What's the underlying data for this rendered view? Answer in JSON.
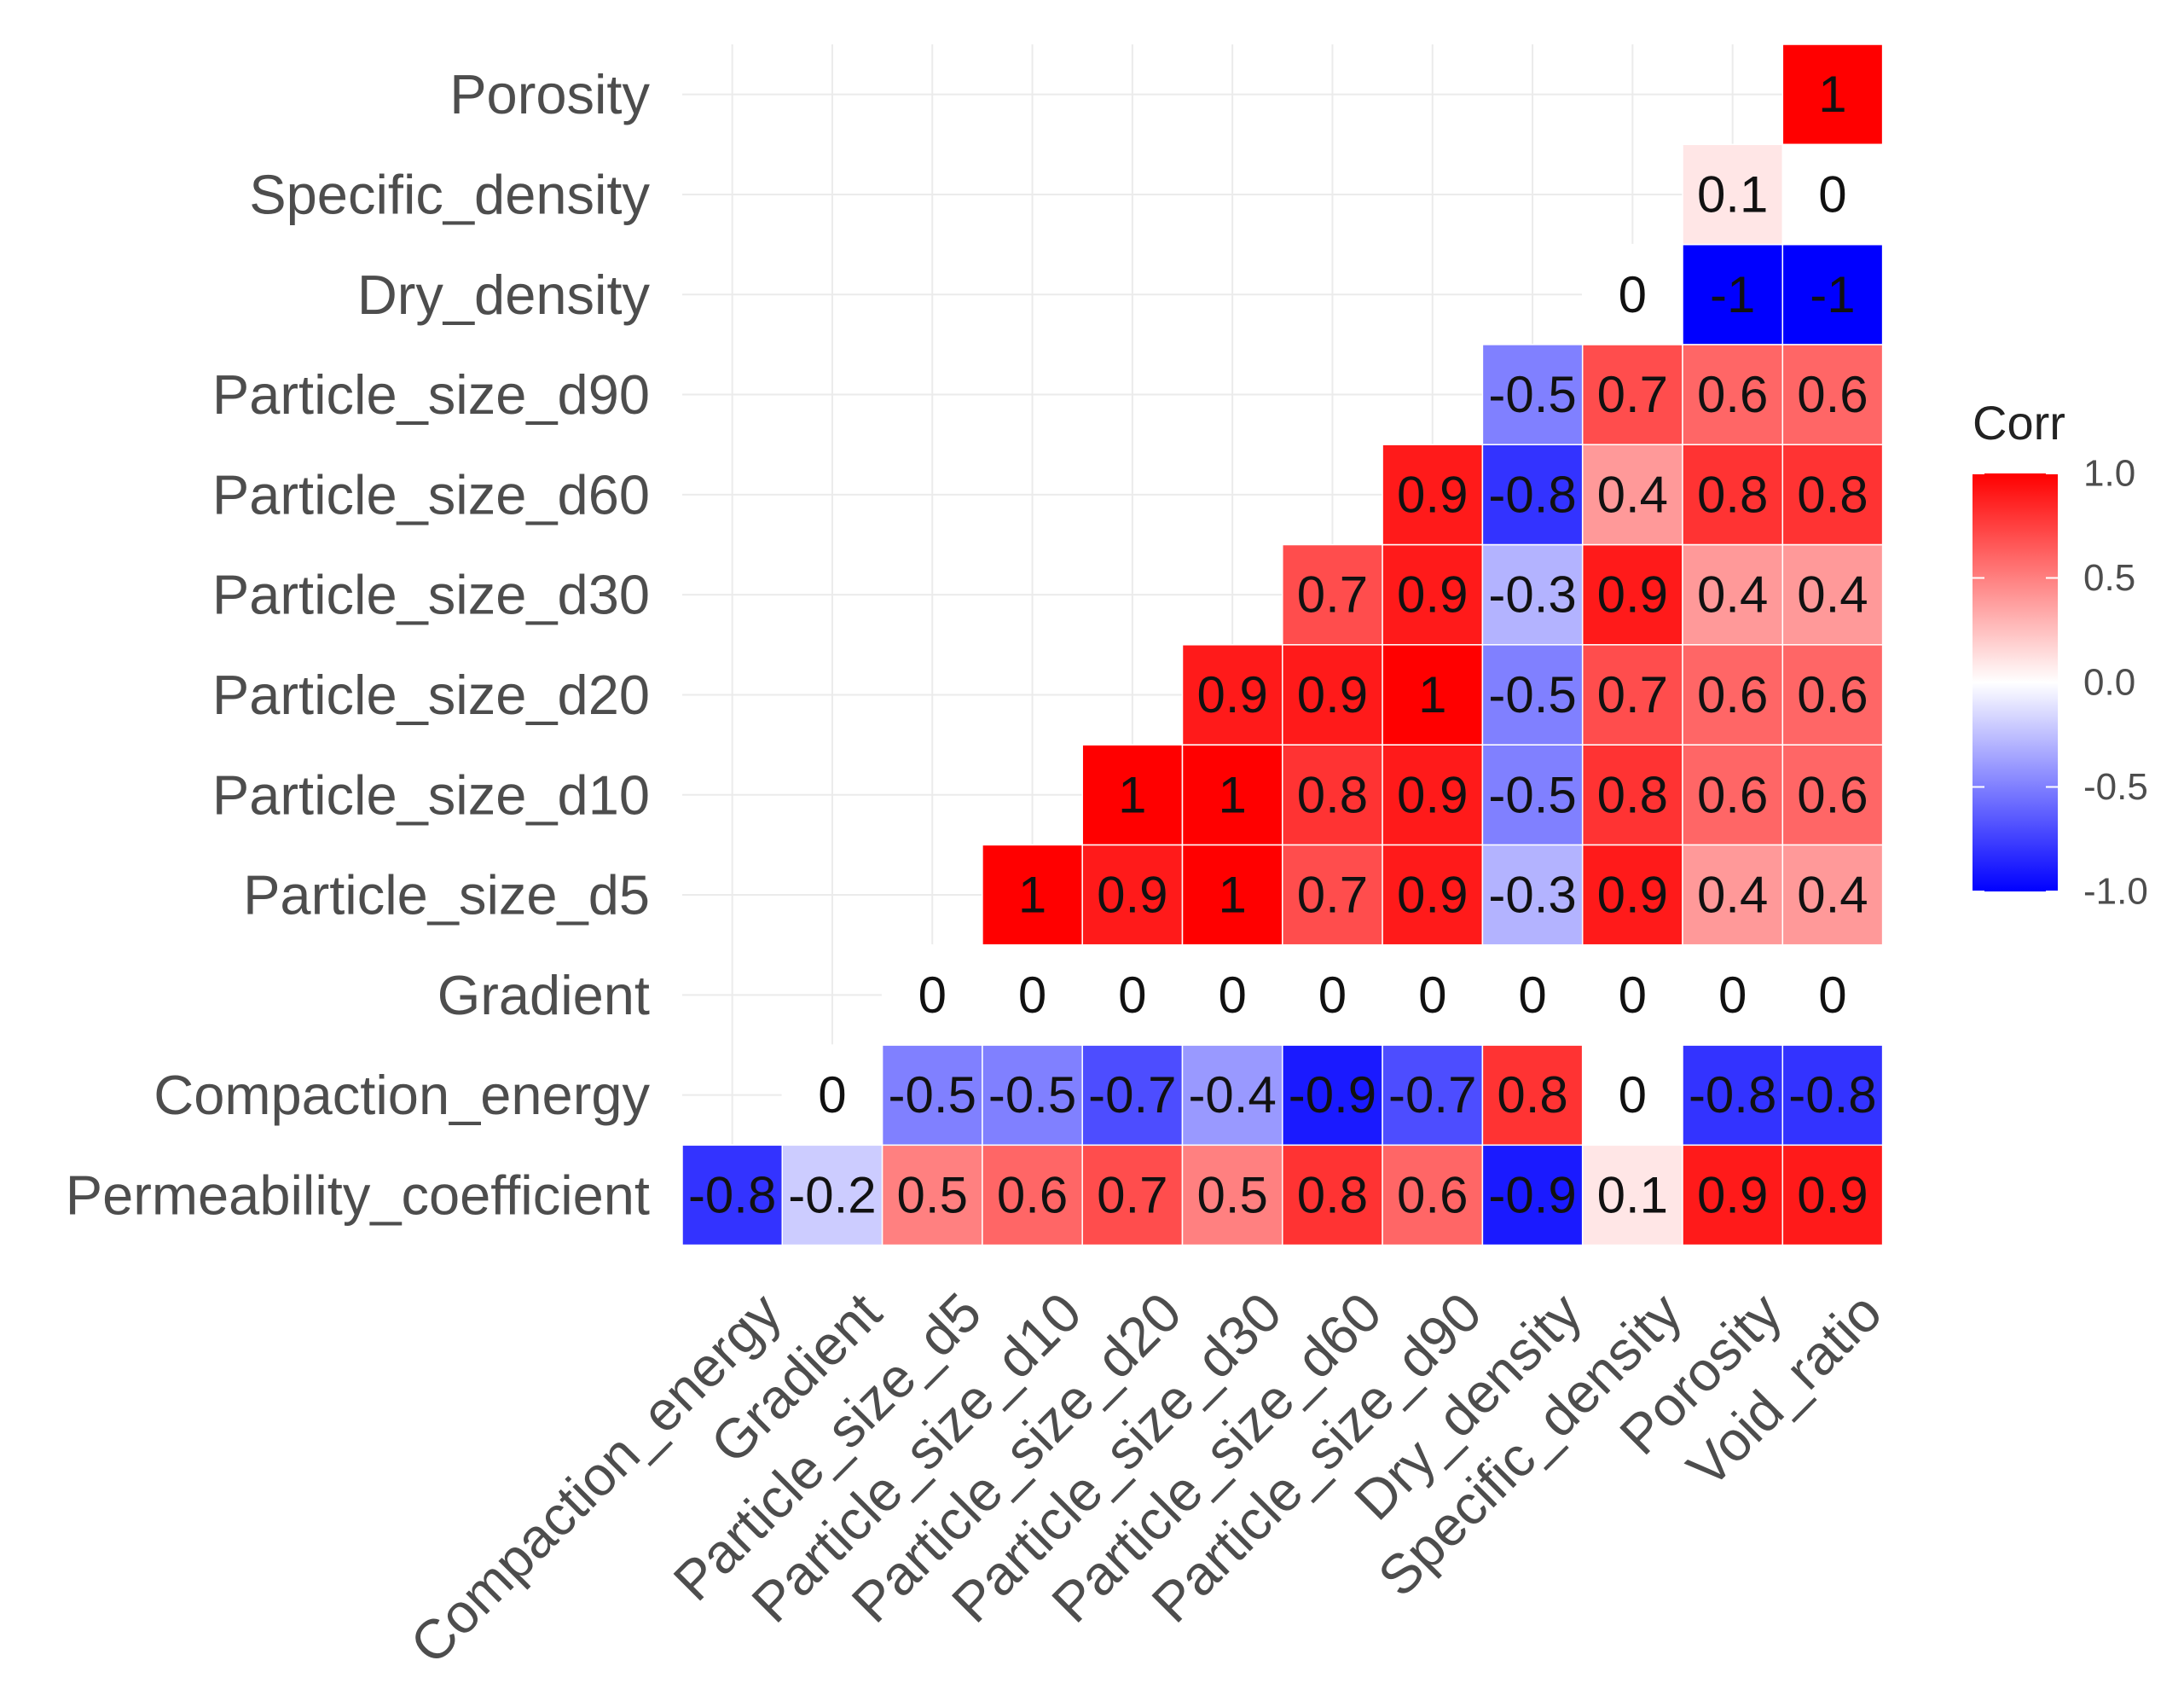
{
  "chart_data": {
    "type": "heatmap",
    "title": "",
    "xlabel": "",
    "ylabel": "",
    "x_categories": [
      "Compaction_energy",
      "Gradient",
      "Particle_size_d5",
      "Particle_size_d10",
      "Particle_size_d20",
      "Particle_size_d30",
      "Particle_size_d60",
      "Particle_size_d90",
      "Dry_density",
      "Specific_density",
      "Porosity",
      "Void_ratio"
    ],
    "y_categories": [
      "Permeability_coefficient",
      "Compaction_energy",
      "Gradient",
      "Particle_size_d5",
      "Particle_size_d10",
      "Particle_size_d20",
      "Particle_size_d30",
      "Particle_size_d60",
      "Particle_size_d90",
      "Dry_density",
      "Specific_density",
      "Porosity"
    ],
    "cells": [
      {
        "x": "Compaction_energy",
        "y": "Permeability_coefficient",
        "value": -0.8,
        "label": "-0.8"
      },
      {
        "x": "Gradient",
        "y": "Permeability_coefficient",
        "value": -0.2,
        "label": "-0.2"
      },
      {
        "x": "Particle_size_d5",
        "y": "Permeability_coefficient",
        "value": 0.5,
        "label": "0.5"
      },
      {
        "x": "Particle_size_d10",
        "y": "Permeability_coefficient",
        "value": 0.6,
        "label": "0.6"
      },
      {
        "x": "Particle_size_d20",
        "y": "Permeability_coefficient",
        "value": 0.7,
        "label": "0.7"
      },
      {
        "x": "Particle_size_d30",
        "y": "Permeability_coefficient",
        "value": 0.5,
        "label": "0.5"
      },
      {
        "x": "Particle_size_d60",
        "y": "Permeability_coefficient",
        "value": 0.8,
        "label": "0.8"
      },
      {
        "x": "Particle_size_d90",
        "y": "Permeability_coefficient",
        "value": 0.6,
        "label": "0.6"
      },
      {
        "x": "Dry_density",
        "y": "Permeability_coefficient",
        "value": -0.9,
        "label": "-0.9"
      },
      {
        "x": "Specific_density",
        "y": "Permeability_coefficient",
        "value": 0.1,
        "label": "0.1"
      },
      {
        "x": "Porosity",
        "y": "Permeability_coefficient",
        "value": 0.9,
        "label": "0.9"
      },
      {
        "x": "Void_ratio",
        "y": "Permeability_coefficient",
        "value": 0.9,
        "label": "0.9"
      },
      {
        "x": "Gradient",
        "y": "Compaction_energy",
        "value": 0,
        "label": "0"
      },
      {
        "x": "Particle_size_d5",
        "y": "Compaction_energy",
        "value": -0.5,
        "label": "-0.5"
      },
      {
        "x": "Particle_size_d10",
        "y": "Compaction_energy",
        "value": -0.5,
        "label": "-0.5"
      },
      {
        "x": "Particle_size_d20",
        "y": "Compaction_energy",
        "value": -0.7,
        "label": "-0.7"
      },
      {
        "x": "Particle_size_d30",
        "y": "Compaction_energy",
        "value": -0.4,
        "label": "-0.4"
      },
      {
        "x": "Particle_size_d60",
        "y": "Compaction_energy",
        "value": -0.9,
        "label": "-0.9"
      },
      {
        "x": "Particle_size_d90",
        "y": "Compaction_energy",
        "value": -0.7,
        "label": "-0.7"
      },
      {
        "x": "Dry_density",
        "y": "Compaction_energy",
        "value": 0.8,
        "label": "0.8"
      },
      {
        "x": "Specific_density",
        "y": "Compaction_energy",
        "value": 0,
        "label": "0"
      },
      {
        "x": "Porosity",
        "y": "Compaction_energy",
        "value": -0.8,
        "label": "-0.8"
      },
      {
        "x": "Void_ratio",
        "y": "Compaction_energy",
        "value": -0.8,
        "label": "-0.8"
      },
      {
        "x": "Particle_size_d5",
        "y": "Gradient",
        "value": 0,
        "label": "0"
      },
      {
        "x": "Particle_size_d10",
        "y": "Gradient",
        "value": 0,
        "label": "0"
      },
      {
        "x": "Particle_size_d20",
        "y": "Gradient",
        "value": 0,
        "label": "0"
      },
      {
        "x": "Particle_size_d30",
        "y": "Gradient",
        "value": 0,
        "label": "0"
      },
      {
        "x": "Particle_size_d60",
        "y": "Gradient",
        "value": 0,
        "label": "0"
      },
      {
        "x": "Particle_size_d90",
        "y": "Gradient",
        "value": 0,
        "label": "0"
      },
      {
        "x": "Dry_density",
        "y": "Gradient",
        "value": 0,
        "label": "0"
      },
      {
        "x": "Specific_density",
        "y": "Gradient",
        "value": 0,
        "label": "0"
      },
      {
        "x": "Porosity",
        "y": "Gradient",
        "value": 0,
        "label": "0"
      },
      {
        "x": "Void_ratio",
        "y": "Gradient",
        "value": 0,
        "label": "0"
      },
      {
        "x": "Particle_size_d10",
        "y": "Particle_size_d5",
        "value": 1,
        "label": "1"
      },
      {
        "x": "Particle_size_d20",
        "y": "Particle_size_d5",
        "value": 0.9,
        "label": "0.9"
      },
      {
        "x": "Particle_size_d30",
        "y": "Particle_size_d5",
        "value": 1,
        "label": "1"
      },
      {
        "x": "Particle_size_d60",
        "y": "Particle_size_d5",
        "value": 0.7,
        "label": "0.7"
      },
      {
        "x": "Particle_size_d90",
        "y": "Particle_size_d5",
        "value": 0.9,
        "label": "0.9"
      },
      {
        "x": "Dry_density",
        "y": "Particle_size_d5",
        "value": -0.3,
        "label": "-0.3"
      },
      {
        "x": "Specific_density",
        "y": "Particle_size_d5",
        "value": 0.9,
        "label": "0.9"
      },
      {
        "x": "Porosity",
        "y": "Particle_size_d5",
        "value": 0.4,
        "label": "0.4"
      },
      {
        "x": "Void_ratio",
        "y": "Particle_size_d5",
        "value": 0.4,
        "label": "0.4"
      },
      {
        "x": "Particle_size_d20",
        "y": "Particle_size_d10",
        "value": 1,
        "label": "1"
      },
      {
        "x": "Particle_size_d30",
        "y": "Particle_size_d10",
        "value": 1,
        "label": "1"
      },
      {
        "x": "Particle_size_d60",
        "y": "Particle_size_d10",
        "value": 0.8,
        "label": "0.8"
      },
      {
        "x": "Particle_size_d90",
        "y": "Particle_size_d10",
        "value": 0.9,
        "label": "0.9"
      },
      {
        "x": "Dry_density",
        "y": "Particle_size_d10",
        "value": -0.5,
        "label": "-0.5"
      },
      {
        "x": "Specific_density",
        "y": "Particle_size_d10",
        "value": 0.8,
        "label": "0.8"
      },
      {
        "x": "Porosity",
        "y": "Particle_size_d10",
        "value": 0.6,
        "label": "0.6"
      },
      {
        "x": "Void_ratio",
        "y": "Particle_size_d10",
        "value": 0.6,
        "label": "0.6"
      },
      {
        "x": "Particle_size_d30",
        "y": "Particle_size_d20",
        "value": 0.9,
        "label": "0.9"
      },
      {
        "x": "Particle_size_d60",
        "y": "Particle_size_d20",
        "value": 0.9,
        "label": "0.9"
      },
      {
        "x": "Particle_size_d90",
        "y": "Particle_size_d20",
        "value": 1,
        "label": "1"
      },
      {
        "x": "Dry_density",
        "y": "Particle_size_d20",
        "value": -0.5,
        "label": "-0.5"
      },
      {
        "x": "Specific_density",
        "y": "Particle_size_d20",
        "value": 0.7,
        "label": "0.7"
      },
      {
        "x": "Porosity",
        "y": "Particle_size_d20",
        "value": 0.6,
        "label": "0.6"
      },
      {
        "x": "Void_ratio",
        "y": "Particle_size_d20",
        "value": 0.6,
        "label": "0.6"
      },
      {
        "x": "Particle_size_d60",
        "y": "Particle_size_d30",
        "value": 0.7,
        "label": "0.7"
      },
      {
        "x": "Particle_size_d90",
        "y": "Particle_size_d30",
        "value": 0.9,
        "label": "0.9"
      },
      {
        "x": "Dry_density",
        "y": "Particle_size_d30",
        "value": -0.3,
        "label": "-0.3"
      },
      {
        "x": "Specific_density",
        "y": "Particle_size_d30",
        "value": 0.9,
        "label": "0.9"
      },
      {
        "x": "Porosity",
        "y": "Particle_size_d30",
        "value": 0.4,
        "label": "0.4"
      },
      {
        "x": "Void_ratio",
        "y": "Particle_size_d30",
        "value": 0.4,
        "label": "0.4"
      },
      {
        "x": "Particle_size_d90",
        "y": "Particle_size_d60",
        "value": 0.9,
        "label": "0.9"
      },
      {
        "x": "Dry_density",
        "y": "Particle_size_d60",
        "value": -0.8,
        "label": "-0.8"
      },
      {
        "x": "Specific_density",
        "y": "Particle_size_d60",
        "value": 0.4,
        "label": "0.4"
      },
      {
        "x": "Porosity",
        "y": "Particle_size_d60",
        "value": 0.8,
        "label": "0.8"
      },
      {
        "x": "Void_ratio",
        "y": "Particle_size_d60",
        "value": 0.8,
        "label": "0.8"
      },
      {
        "x": "Dry_density",
        "y": "Particle_size_d90",
        "value": -0.5,
        "label": "-0.5"
      },
      {
        "x": "Specific_density",
        "y": "Particle_size_d90",
        "value": 0.7,
        "label": "0.7"
      },
      {
        "x": "Porosity",
        "y": "Particle_size_d90",
        "value": 0.6,
        "label": "0.6"
      },
      {
        "x": "Void_ratio",
        "y": "Particle_size_d90",
        "value": 0.6,
        "label": "0.6"
      },
      {
        "x": "Specific_density",
        "y": "Dry_density",
        "value": 0,
        "label": "0"
      },
      {
        "x": "Porosity",
        "y": "Dry_density",
        "value": -1,
        "label": "-1"
      },
      {
        "x": "Void_ratio",
        "y": "Dry_density",
        "value": -1,
        "label": "-1"
      },
      {
        "x": "Porosity",
        "y": "Specific_density",
        "value": 0.1,
        "label": "0.1"
      },
      {
        "x": "Void_ratio",
        "y": "Specific_density",
        "value": 0,
        "label": "0"
      },
      {
        "x": "Void_ratio",
        "y": "Porosity",
        "value": 1,
        "label": "1"
      }
    ],
    "legend": {
      "title": "Corr",
      "ticks": [
        {
          "value": 1.0,
          "label": "1.0"
        },
        {
          "value": 0.5,
          "label": "0.5"
        },
        {
          "value": 0.0,
          "label": "0.0"
        },
        {
          "value": -0.5,
          "label": "-0.5"
        },
        {
          "value": -1.0,
          "label": "-1.0"
        }
      ],
      "range": [
        -1,
        1
      ],
      "position": "right"
    },
    "colors": {
      "low": "#0000ff",
      "mid": "#ffffff",
      "high": "#ff0000",
      "grid": "#ebebeb",
      "text": "#111111",
      "axis_text": "#4d4d4d"
    }
  }
}
